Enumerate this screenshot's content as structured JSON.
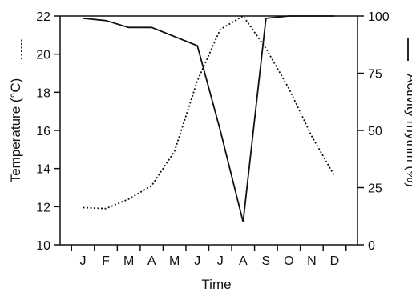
{
  "chart_data": {
    "type": "line",
    "xlabel": "Time",
    "categories": [
      "J",
      "F",
      "M",
      "A",
      "M",
      "J",
      "J",
      "A",
      "S",
      "O",
      "N",
      "D"
    ],
    "y_left": {
      "label": "Temperature (°C)",
      "range": [
        10,
        22
      ],
      "ticks": [
        "10",
        "12",
        "14",
        "16",
        "18",
        "20",
        "22"
      ]
    },
    "y_right": {
      "label": "Activity rhythm (%)",
      "range": [
        0,
        100
      ],
      "ticks": [
        "0",
        "25",
        "50",
        "75",
        "100"
      ]
    },
    "series": [
      {
        "axis": "left",
        "style": "dotted",
        "values": [
          11.95,
          11.9,
          12.4,
          13.1,
          14.9,
          18.6,
          21.3,
          22.0,
          20.3,
          18.2,
          15.7,
          13.6
        ]
      },
      {
        "axis": "right",
        "style": "solid",
        "values": [
          99,
          98,
          95,
          95,
          91,
          87,
          50,
          10,
          99,
          100,
          100,
          100
        ]
      }
    ],
    "grid": false,
    "legend": "none"
  }
}
